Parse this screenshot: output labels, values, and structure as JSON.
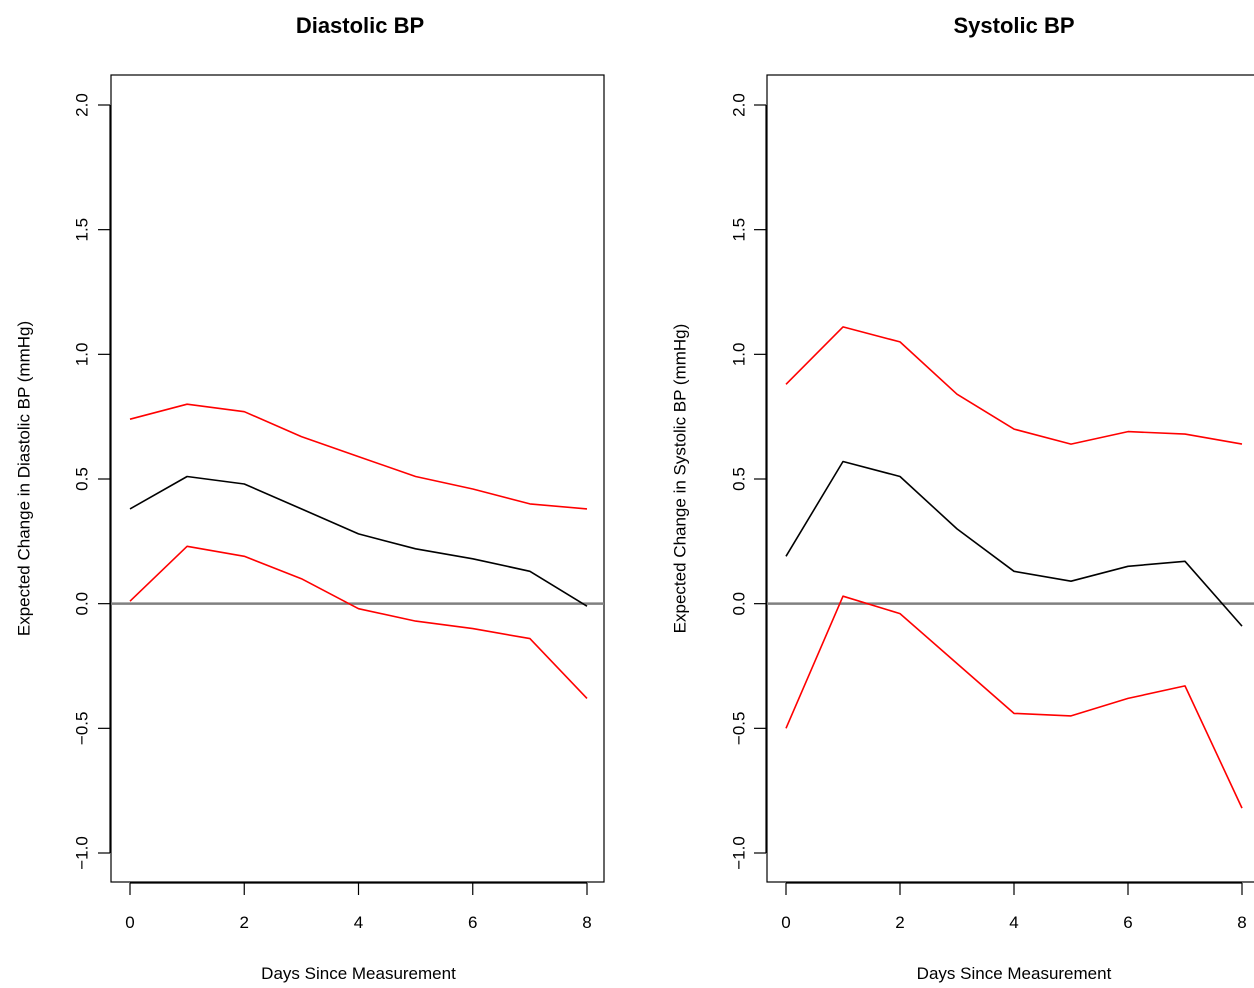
{
  "chart_data": [
    {
      "type": "line",
      "title": "Diastolic BP",
      "xlabel": "Days Since Measurement",
      "ylabel": "Expected Change in Diastolic BP (mmHg)",
      "xlim": [
        0,
        8
      ],
      "ylim": [
        -1.0,
        2.0
      ],
      "x_ticks": [
        0,
        2,
        4,
        6,
        8
      ],
      "y_ticks": [
        -1.0,
        -0.5,
        0.0,
        0.5,
        1.0,
        1.5,
        2.0
      ],
      "y_tick_labels": [
        "−1.0",
        "−0.5",
        "0.0",
        "0.5",
        "1.0",
        "1.5",
        "2.0"
      ],
      "reference_line": 0,
      "grid": false,
      "x": [
        0,
        1,
        2,
        3,
        4,
        5,
        6,
        7,
        8
      ],
      "series": [
        {
          "role": "estimate",
          "color": "#000000",
          "values": [
            0.38,
            0.51,
            0.48,
            0.38,
            0.28,
            0.22,
            0.18,
            0.13,
            -0.01
          ]
        },
        {
          "role": "upper",
          "color": "#ff0000",
          "values": [
            0.74,
            0.8,
            0.77,
            0.67,
            0.59,
            0.51,
            0.46,
            0.4,
            0.38
          ]
        },
        {
          "role": "lower",
          "color": "#ff0000",
          "values": [
            0.01,
            0.23,
            0.19,
            0.1,
            -0.02,
            -0.07,
            -0.1,
            -0.14,
            -0.38
          ]
        }
      ]
    },
    {
      "type": "line",
      "title": "Systolic BP",
      "xlabel": "Days Since Measurement",
      "ylabel": "Expected Change in Systolic BP (mmHg)",
      "xlim": [
        0,
        8
      ],
      "ylim": [
        -1.0,
        2.0
      ],
      "x_ticks": [
        0,
        2,
        4,
        6,
        8
      ],
      "y_ticks": [
        -1.0,
        -0.5,
        0.0,
        0.5,
        1.0,
        1.5,
        2.0
      ],
      "y_tick_labels": [
        "−1.0",
        "−0.5",
        "0.0",
        "0.5",
        "1.0",
        "1.5",
        "2.0"
      ],
      "reference_line": 0,
      "grid": false,
      "x": [
        0,
        1,
        2,
        3,
        4,
        5,
        6,
        7,
        8
      ],
      "series": [
        {
          "role": "estimate",
          "color": "#000000",
          "values": [
            0.19,
            0.57,
            0.51,
            0.3,
            0.13,
            0.09,
            0.15,
            0.17,
            -0.09
          ]
        },
        {
          "role": "upper",
          "color": "#ff0000",
          "values": [
            0.88,
            1.11,
            1.05,
            0.84,
            0.7,
            0.64,
            0.69,
            0.68,
            0.64
          ]
        },
        {
          "role": "lower",
          "color": "#ff0000",
          "values": [
            -0.5,
            0.03,
            -0.04,
            -0.24,
            -0.44,
            -0.45,
            -0.38,
            -0.33,
            -0.82
          ]
        }
      ]
    }
  ]
}
